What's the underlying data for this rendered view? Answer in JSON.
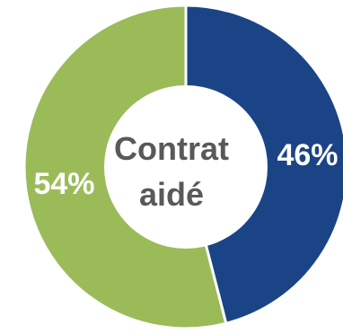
{
  "chart_data": {
    "type": "pie",
    "center_label": [
      "Contrat",
      "aidé"
    ],
    "slices": [
      {
        "label": "46%",
        "value": 46,
        "color": "#1a4485"
      },
      {
        "label": "54%",
        "value": 54,
        "color": "#9bbb59"
      }
    ]
  }
}
